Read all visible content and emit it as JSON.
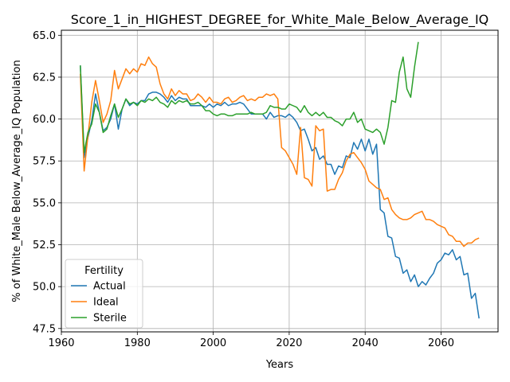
{
  "chart_data": {
    "type": "line",
    "title": "Score_1_in_HIGHEST_DEGREE_for_White_Male_Below_Average_IQ",
    "xlabel": "Years",
    "ylabel": "% of White_Male Below_Average_IQ Population",
    "xlim": [
      1960,
      2075
    ],
    "ylim": [
      47.3,
      65.3
    ],
    "xticks": [
      1960,
      1980,
      2000,
      2020,
      2040,
      2060
    ],
    "yticks": [
      47.5,
      50.0,
      52.5,
      55.0,
      57.5,
      60.0,
      62.5,
      65.0
    ],
    "ytick_labels": [
      "47.5",
      "50.0",
      "52.5",
      "55.0",
      "57.5",
      "60.0",
      "62.5",
      "65.0"
    ],
    "grid": true,
    "legend": {
      "title": "Fertility",
      "placement": "lower-left"
    },
    "series": [
      {
        "name": "Actual",
        "color": "#1f77b4",
        "points": [
          [
            1965,
            63.2
          ],
          [
            1966,
            57.7
          ],
          [
            1967,
            58.9
          ],
          [
            1968,
            59.9
          ],
          [
            1969,
            61.5
          ],
          [
            1970,
            60.4
          ],
          [
            1971,
            59.3
          ],
          [
            1972,
            59.5
          ],
          [
            1973,
            60.0
          ],
          [
            1974,
            60.9
          ],
          [
            1975,
            59.4
          ],
          [
            1976,
            60.6
          ],
          [
            1977,
            61.2
          ],
          [
            1978,
            60.8
          ],
          [
            1979,
            61.0
          ],
          [
            1980,
            60.9
          ],
          [
            1981,
            61.1
          ],
          [
            1982,
            61.1
          ],
          [
            1983,
            61.5
          ],
          [
            1984,
            61.6
          ],
          [
            1985,
            61.6
          ],
          [
            1986,
            61.5
          ],
          [
            1987,
            61.3
          ],
          [
            1988,
            61.0
          ],
          [
            1989,
            61.4
          ],
          [
            1990,
            61.1
          ],
          [
            1991,
            61.3
          ],
          [
            1992,
            61.2
          ],
          [
            1993,
            61.2
          ],
          [
            1994,
            60.8
          ],
          [
            1995,
            60.8
          ],
          [
            1996,
            60.8
          ],
          [
            1997,
            60.8
          ],
          [
            1998,
            60.7
          ],
          [
            1999,
            60.9
          ],
          [
            2000,
            60.7
          ],
          [
            2001,
            60.9
          ],
          [
            2002,
            60.8
          ],
          [
            2003,
            61.0
          ],
          [
            2004,
            60.8
          ],
          [
            2005,
            60.9
          ],
          [
            2006,
            60.9
          ],
          [
            2007,
            61.0
          ],
          [
            2008,
            60.9
          ],
          [
            2009,
            60.6
          ],
          [
            2010,
            60.3
          ],
          [
            2011,
            60.3
          ],
          [
            2012,
            60.3
          ],
          [
            2013,
            60.3
          ],
          [
            2014,
            60.0
          ],
          [
            2015,
            60.4
          ],
          [
            2016,
            60.1
          ],
          [
            2017,
            60.2
          ],
          [
            2018,
            60.2
          ],
          [
            2019,
            60.1
          ],
          [
            2020,
            60.3
          ],
          [
            2021,
            60.1
          ],
          [
            2022,
            59.8
          ],
          [
            2023,
            59.3
          ],
          [
            2024,
            59.4
          ],
          [
            2025,
            58.8
          ],
          [
            2026,
            58.1
          ],
          [
            2027,
            58.3
          ],
          [
            2028,
            57.6
          ],
          [
            2029,
            57.8
          ],
          [
            2030,
            57.3
          ],
          [
            2031,
            57.3
          ],
          [
            2032,
            56.7
          ],
          [
            2033,
            57.2
          ],
          [
            2034,
            57.1
          ],
          [
            2035,
            57.8
          ],
          [
            2036,
            57.7
          ],
          [
            2037,
            58.6
          ],
          [
            2038,
            58.2
          ],
          [
            2039,
            58.8
          ],
          [
            2040,
            58.1
          ],
          [
            2041,
            58.8
          ],
          [
            2042,
            57.9
          ],
          [
            2043,
            58.5
          ],
          [
            2044,
            54.6
          ],
          [
            2045,
            54.4
          ],
          [
            2046,
            53.0
          ],
          [
            2047,
            52.9
          ],
          [
            2048,
            51.8
          ],
          [
            2049,
            51.7
          ],
          [
            2050,
            50.8
          ],
          [
            2051,
            51.0
          ],
          [
            2052,
            50.3
          ],
          [
            2053,
            50.7
          ],
          [
            2054,
            50.0
          ],
          [
            2055,
            50.3
          ],
          [
            2056,
            50.1
          ],
          [
            2057,
            50.5
          ],
          [
            2058,
            50.8
          ],
          [
            2059,
            51.4
          ],
          [
            2060,
            51.6
          ],
          [
            2061,
            52.0
          ],
          [
            2062,
            51.9
          ],
          [
            2063,
            52.2
          ],
          [
            2064,
            51.6
          ],
          [
            2065,
            51.8
          ],
          [
            2066,
            50.7
          ],
          [
            2067,
            50.8
          ],
          [
            2068,
            49.3
          ],
          [
            2069,
            49.6
          ],
          [
            2070,
            48.1
          ]
        ]
      },
      {
        "name": "Ideal",
        "color": "#ff7f0e",
        "points": [
          [
            1965,
            62.7
          ],
          [
            1966,
            56.9
          ],
          [
            1967,
            59.0
          ],
          [
            1968,
            61.0
          ],
          [
            1969,
            62.3
          ],
          [
            1970,
            61.1
          ],
          [
            1971,
            59.8
          ],
          [
            1972,
            60.3
          ],
          [
            1973,
            61.1
          ],
          [
            1974,
            62.9
          ],
          [
            1975,
            61.8
          ],
          [
            1976,
            62.4
          ],
          [
            1977,
            63.0
          ],
          [
            1978,
            62.7
          ],
          [
            1979,
            63.0
          ],
          [
            1980,
            62.8
          ],
          [
            1981,
            63.3
          ],
          [
            1982,
            63.2
          ],
          [
            1983,
            63.7
          ],
          [
            1984,
            63.3
          ],
          [
            1985,
            63.1
          ],
          [
            1986,
            62.1
          ],
          [
            1987,
            61.5
          ],
          [
            1988,
            61.2
          ],
          [
            1989,
            61.8
          ],
          [
            1990,
            61.4
          ],
          [
            1991,
            61.7
          ],
          [
            1992,
            61.5
          ],
          [
            1993,
            61.5
          ],
          [
            1994,
            61.1
          ],
          [
            1995,
            61.2
          ],
          [
            1996,
            61.5
          ],
          [
            1997,
            61.3
          ],
          [
            1998,
            61.0
          ],
          [
            1999,
            61.3
          ],
          [
            2000,
            61.0
          ],
          [
            2001,
            61.0
          ],
          [
            2002,
            60.9
          ],
          [
            2003,
            61.2
          ],
          [
            2004,
            61.3
          ],
          [
            2005,
            61.0
          ],
          [
            2006,
            61.1
          ],
          [
            2007,
            61.3
          ],
          [
            2008,
            61.4
          ],
          [
            2009,
            61.1
          ],
          [
            2010,
            61.2
          ],
          [
            2011,
            61.1
          ],
          [
            2012,
            61.3
          ],
          [
            2013,
            61.3
          ],
          [
            2014,
            61.5
          ],
          [
            2015,
            61.4
          ],
          [
            2016,
            61.5
          ],
          [
            2017,
            61.2
          ],
          [
            2018,
            58.3
          ],
          [
            2019,
            58.1
          ],
          [
            2020,
            57.7
          ],
          [
            2021,
            57.3
          ],
          [
            2022,
            56.7
          ],
          [
            2023,
            59.5
          ],
          [
            2024,
            56.5
          ],
          [
            2025,
            56.4
          ],
          [
            2026,
            56.0
          ],
          [
            2027,
            59.6
          ],
          [
            2028,
            59.3
          ],
          [
            2029,
            59.4
          ],
          [
            2030,
            55.7
          ],
          [
            2031,
            55.8
          ],
          [
            2032,
            55.8
          ],
          [
            2033,
            56.4
          ],
          [
            2034,
            56.8
          ],
          [
            2035,
            57.5
          ],
          [
            2036,
            57.9
          ],
          [
            2037,
            58.0
          ],
          [
            2038,
            57.7
          ],
          [
            2039,
            57.4
          ],
          [
            2040,
            57.0
          ],
          [
            2041,
            56.3
          ],
          [
            2042,
            56.1
          ],
          [
            2043,
            55.9
          ],
          [
            2044,
            55.8
          ],
          [
            2045,
            55.2
          ],
          [
            2046,
            55.3
          ],
          [
            2047,
            54.6
          ],
          [
            2048,
            54.3
          ],
          [
            2049,
            54.1
          ],
          [
            2050,
            54.0
          ],
          [
            2051,
            54.0
          ],
          [
            2052,
            54.1
          ],
          [
            2053,
            54.3
          ],
          [
            2054,
            54.4
          ],
          [
            2055,
            54.5
          ],
          [
            2056,
            54.0
          ],
          [
            2057,
            54.0
          ],
          [
            2058,
            53.9
          ],
          [
            2059,
            53.7
          ],
          [
            2060,
            53.6
          ],
          [
            2061,
            53.5
          ],
          [
            2062,
            53.1
          ],
          [
            2063,
            53.0
          ],
          [
            2064,
            52.7
          ],
          [
            2065,
            52.7
          ],
          [
            2066,
            52.4
          ],
          [
            2067,
            52.6
          ],
          [
            2068,
            52.6
          ],
          [
            2069,
            52.8
          ],
          [
            2070,
            52.9
          ]
        ]
      },
      {
        "name": "Sterile",
        "color": "#2ca02c",
        "points": [
          [
            1965,
            63.2
          ],
          [
            1966,
            58.0
          ],
          [
            1967,
            59.2
          ],
          [
            1968,
            59.7
          ],
          [
            1969,
            60.9
          ],
          [
            1970,
            60.4
          ],
          [
            1971,
            59.2
          ],
          [
            1972,
            59.4
          ],
          [
            1973,
            60.2
          ],
          [
            1974,
            60.9
          ],
          [
            1975,
            60.1
          ],
          [
            1976,
            60.6
          ],
          [
            1977,
            61.2
          ],
          [
            1978,
            60.9
          ],
          [
            1979,
            61.0
          ],
          [
            1980,
            60.8
          ],
          [
            1981,
            61.1
          ],
          [
            1982,
            61.0
          ],
          [
            1983,
            61.2
          ],
          [
            1984,
            61.1
          ],
          [
            1985,
            61.3
          ],
          [
            1986,
            61.0
          ],
          [
            1987,
            60.9
          ],
          [
            1988,
            60.7
          ],
          [
            1989,
            61.1
          ],
          [
            1990,
            60.9
          ],
          [
            1991,
            61.1
          ],
          [
            1992,
            61.0
          ],
          [
            1993,
            61.1
          ],
          [
            1994,
            60.9
          ],
          [
            1995,
            60.9
          ],
          [
            1996,
            61.0
          ],
          [
            1997,
            60.8
          ],
          [
            1998,
            60.5
          ],
          [
            1999,
            60.5
          ],
          [
            2000,
            60.3
          ],
          [
            2001,
            60.2
          ],
          [
            2002,
            60.3
          ],
          [
            2003,
            60.3
          ],
          [
            2004,
            60.2
          ],
          [
            2005,
            60.2
          ],
          [
            2006,
            60.3
          ],
          [
            2007,
            60.3
          ],
          [
            2008,
            60.3
          ],
          [
            2009,
            60.3
          ],
          [
            2010,
            60.4
          ],
          [
            2011,
            60.3
          ],
          [
            2012,
            60.3
          ],
          [
            2013,
            60.3
          ],
          [
            2014,
            60.4
          ],
          [
            2015,
            60.8
          ],
          [
            2016,
            60.7
          ],
          [
            2017,
            60.7
          ],
          [
            2018,
            60.6
          ],
          [
            2019,
            60.6
          ],
          [
            2020,
            60.9
          ],
          [
            2021,
            60.8
          ],
          [
            2022,
            60.7
          ],
          [
            2023,
            60.4
          ],
          [
            2024,
            60.8
          ],
          [
            2025,
            60.4
          ],
          [
            2026,
            60.2
          ],
          [
            2027,
            60.4
          ],
          [
            2028,
            60.2
          ],
          [
            2029,
            60.4
          ],
          [
            2030,
            60.1
          ],
          [
            2031,
            60.1
          ],
          [
            2032,
            59.9
          ],
          [
            2033,
            59.8
          ],
          [
            2034,
            59.6
          ],
          [
            2035,
            60.0
          ],
          [
            2036,
            60.0
          ],
          [
            2037,
            60.4
          ],
          [
            2038,
            59.8
          ],
          [
            2039,
            60.0
          ],
          [
            2040,
            59.4
          ],
          [
            2041,
            59.3
          ],
          [
            2042,
            59.2
          ],
          [
            2043,
            59.4
          ],
          [
            2044,
            59.2
          ],
          [
            2045,
            58.5
          ],
          [
            2046,
            59.5
          ],
          [
            2047,
            61.1
          ],
          [
            2048,
            61.0
          ],
          [
            2049,
            62.8
          ],
          [
            2050,
            63.7
          ],
          [
            2051,
            61.8
          ],
          [
            2052,
            61.3
          ],
          [
            2053,
            63.1
          ],
          [
            2054,
            64.6
          ]
        ]
      }
    ]
  }
}
